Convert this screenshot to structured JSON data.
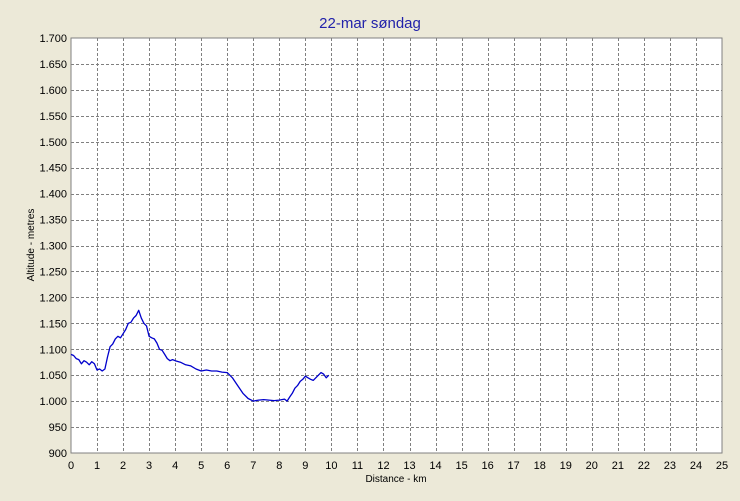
{
  "chart_data": {
    "type": "line",
    "title": "22-mar søndag",
    "xlabel": "Distance - km",
    "ylabel": "Altitude - metres",
    "xlim": [
      0,
      25
    ],
    "ylim": [
      900,
      1700
    ],
    "x_ticks": [
      "0",
      "1",
      "2",
      "3",
      "4",
      "5",
      "6",
      "7",
      "8",
      "9",
      "10",
      "11",
      "12",
      "13",
      "14",
      "15",
      "16",
      "17",
      "18",
      "19",
      "20",
      "21",
      "22",
      "23",
      "24",
      "25"
    ],
    "y_ticks": [
      "900",
      "950",
      "1.000",
      "1.050",
      "1.100",
      "1.150",
      "1.200",
      "1.250",
      "1.300",
      "1.350",
      "1.400",
      "1.450",
      "1.500",
      "1.550",
      "1.600",
      "1.650",
      "1.700"
    ],
    "grid": true,
    "colors": {
      "line": "#0000cc",
      "title": "#2222aa",
      "background": "#ece9d8",
      "plot_area": "#ffffff",
      "grid": "#808080"
    },
    "series": [
      {
        "x": [
          0,
          0.1,
          0.2,
          0.3,
          0.4,
          0.5,
          0.6,
          0.7,
          0.8,
          0.9,
          1.0,
          1.1,
          1.2,
          1.3,
          1.4,
          1.5,
          1.6,
          1.7,
          1.8,
          1.9,
          2.0,
          2.1,
          2.2,
          2.3,
          2.4,
          2.5,
          2.6,
          2.7,
          2.8,
          2.9,
          3.0,
          3.1,
          3.2,
          3.3,
          3.4,
          3.5,
          3.6,
          3.7,
          3.8,
          3.9,
          4.0,
          4.2,
          4.4,
          4.6,
          4.8,
          5.0,
          5.2,
          5.4,
          5.6,
          5.8,
          6.0,
          6.2,
          6.4,
          6.6,
          6.8,
          7.0,
          7.2,
          7.4,
          7.6,
          7.8,
          8.0,
          8.2,
          8.3,
          8.4,
          8.5,
          8.6,
          8.7,
          8.8,
          8.9,
          9.0,
          9.1,
          9.2,
          9.3,
          9.4,
          9.5,
          9.6,
          9.7,
          9.8,
          9.9
        ],
        "y": [
          1090,
          1088,
          1082,
          1080,
          1072,
          1078,
          1075,
          1070,
          1076,
          1072,
          1060,
          1062,
          1058,
          1062,
          1085,
          1105,
          1110,
          1120,
          1125,
          1122,
          1130,
          1138,
          1150,
          1152,
          1160,
          1165,
          1175,
          1160,
          1150,
          1145,
          1125,
          1122,
          1120,
          1112,
          1100,
          1098,
          1090,
          1082,
          1078,
          1080,
          1078,
          1075,
          1070,
          1068,
          1062,
          1058,
          1060,
          1058,
          1058,
          1056,
          1055,
          1045,
          1030,
          1015,
          1005,
          1000,
          1002,
          1003,
          1002,
          1001,
          1002,
          1004,
          1000,
          1008,
          1015,
          1025,
          1030,
          1038,
          1042,
          1048,
          1045,
          1042,
          1040,
          1045,
          1050,
          1055,
          1052,
          1045,
          1050
        ]
      }
    ]
  }
}
